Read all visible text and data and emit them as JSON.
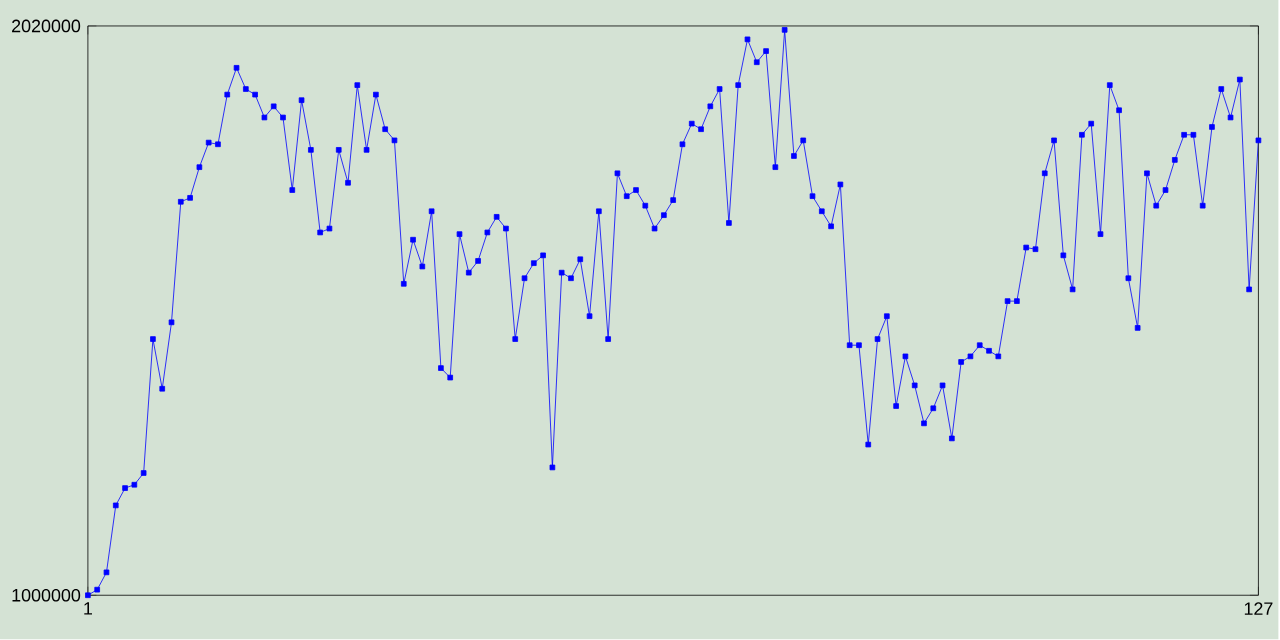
{
  "chart_data": {
    "type": "line",
    "color": "#0000ff",
    "marker": "square",
    "line_style": "solid",
    "grid": false,
    "x": [
      1,
      2,
      3,
      4,
      5,
      6,
      7,
      8,
      9,
      10,
      11,
      12,
      13,
      14,
      15,
      16,
      17,
      18,
      19,
      20,
      21,
      22,
      23,
      24,
      25,
      26,
      27,
      28,
      29,
      30,
      31,
      32,
      33,
      34,
      35,
      36,
      37,
      38,
      39,
      40,
      41,
      42,
      43,
      44,
      45,
      46,
      47,
      48,
      49,
      50,
      51,
      52,
      53,
      54,
      55,
      56,
      57,
      58,
      59,
      60,
      61,
      62,
      63,
      64,
      65,
      66,
      67,
      68,
      69,
      70,
      71,
      72,
      73,
      74,
      75,
      76,
      77,
      78,
      79,
      80,
      81,
      82,
      83,
      84,
      85,
      86,
      87,
      88,
      89,
      90,
      91,
      92,
      93,
      94,
      95,
      96,
      97,
      98,
      99,
      100,
      101,
      102,
      103,
      104,
      105,
      106,
      107,
      108,
      109,
      110,
      111,
      112,
      113,
      114,
      115,
      116,
      117,
      118,
      119,
      120,
      121,
      122,
      123,
      124,
      125,
      126,
      127
    ],
    "values": [
      1000000,
      1010000,
      1041000,
      1161000,
      1192000,
      1198000,
      1219000,
      1459000,
      1370000,
      1489000,
      1705000,
      1712000,
      1767000,
      1811000,
      1808000,
      1897000,
      1945000,
      1907000,
      1897000,
      1856000,
      1876000,
      1856000,
      1726000,
      1887000,
      1798000,
      1650000,
      1657000,
      1798000,
      1739000,
      1914000,
      1798000,
      1897000,
      1835000,
      1815000,
      1558000,
      1637000,
      1589000,
      1688000,
      1407000,
      1390000,
      1647000,
      1578000,
      1599000,
      1650000,
      1678000,
      1657000,
      1459000,
      1568000,
      1595000,
      1609000,
      1229000,
      1578000,
      1568000,
      1602000,
      1500000,
      1688000,
      1459000,
      1756000,
      1715000,
      1726000,
      1698000,
      1657000,
      1681000,
      1708000,
      1808000,
      1845000,
      1835000,
      1876000,
      1907000,
      1667000,
      1914000,
      1996000,
      1955000,
      1975000,
      1767000,
      2013000,
      1787000,
      1815000,
      1715000,
      1688000,
      1661000,
      1736000,
      1448000,
      1448000,
      1270000,
      1459000,
      1500000,
      1339000,
      1428000,
      1376000,
      1308000,
      1335000,
      1376000,
      1281000,
      1418000,
      1428000,
      1448000,
      1438000,
      1428000,
      1527000,
      1527000,
      1623000,
      1620000,
      1756000,
      1815000,
      1609000,
      1548000,
      1825000,
      1845000,
      1647000,
      1914000,
      1869000,
      1568000,
      1479000,
      1756000,
      1698000,
      1726000,
      1780000,
      1825000,
      1825000,
      1698000,
      1839000,
      1907000,
      1856000,
      1924000,
      1548000,
      1815000
    ],
    "xlim": [
      1,
      127
    ],
    "ylim": [
      1000000,
      2020000
    ],
    "xticks": [
      1,
      127
    ],
    "yticks": [
      1000000,
      2020000
    ]
  }
}
